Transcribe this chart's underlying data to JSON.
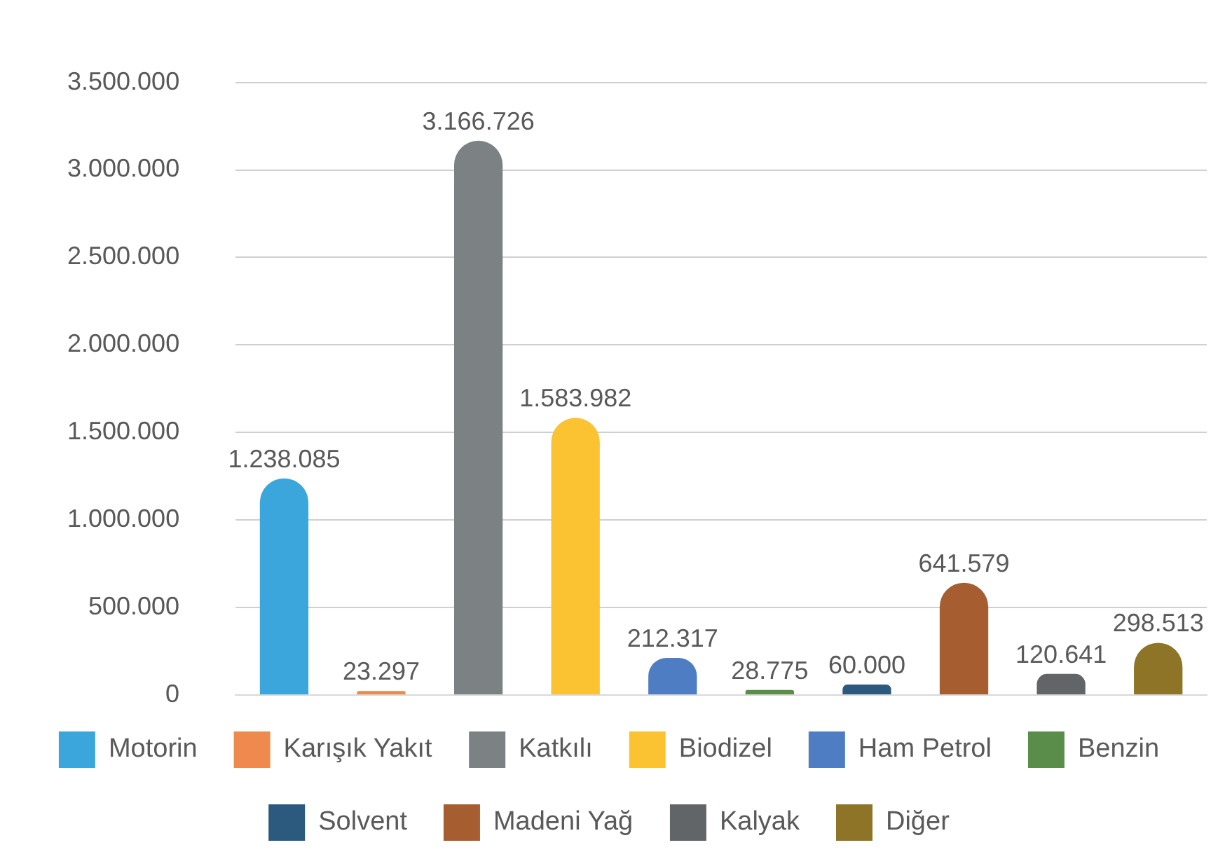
{
  "chart_data": {
    "type": "bar",
    "categories": [
      null,
      null,
      null,
      null,
      null,
      null,
      null,
      null,
      null,
      null
    ],
    "series": [
      {
        "name": "Motorin",
        "color": "#3aa6dc",
        "values": [
          1238085,
          null,
          null,
          null,
          null,
          null,
          null,
          null,
          null,
          null
        ],
        "value_labels": [
          "1.238.085",
          null,
          null,
          null,
          null,
          null,
          null,
          null,
          null,
          null
        ]
      },
      {
        "name": "Karışık Yakıt",
        "color": "#ef8a4e",
        "values": [
          null,
          23297,
          null,
          null,
          null,
          null,
          null,
          null,
          null,
          null
        ],
        "value_labels": [
          null,
          "23.297",
          null,
          null,
          null,
          null,
          null,
          null,
          null,
          null
        ]
      },
      {
        "name": "Katkılı",
        "color": "#7c8183",
        "values": [
          null,
          null,
          3166726,
          null,
          null,
          null,
          null,
          null,
          null,
          null
        ],
        "value_labels": [
          null,
          null,
          "3.166.726",
          null,
          null,
          null,
          null,
          null,
          null,
          null
        ]
      },
      {
        "name": "Biodizel",
        "color": "#fbc232",
        "values": [
          null,
          null,
          null,
          1583982,
          null,
          null,
          null,
          null,
          null,
          null
        ],
        "value_labels": [
          null,
          null,
          null,
          "1.583.982",
          null,
          null,
          null,
          null,
          null,
          null
        ]
      },
      {
        "name": "Ham Petrol",
        "color": "#4f7dc4",
        "values": [
          null,
          null,
          null,
          null,
          212317,
          null,
          null,
          null,
          null,
          null
        ],
        "value_labels": [
          null,
          null,
          null,
          null,
          "212.317",
          null,
          null,
          null,
          null,
          null
        ]
      },
      {
        "name": "Benzin",
        "color": "#5a8c4a",
        "values": [
          null,
          null,
          null,
          null,
          null,
          28775,
          null,
          null,
          null,
          null
        ],
        "value_labels": [
          null,
          null,
          null,
          null,
          null,
          "28.775",
          null,
          null,
          null,
          null
        ]
      },
      {
        "name": "Solvent",
        "color": "#2c5a7e",
        "values": [
          null,
          null,
          null,
          null,
          null,
          null,
          60000,
          null,
          null,
          null
        ],
        "value_labels": [
          null,
          null,
          null,
          null,
          null,
          null,
          "60.000",
          null,
          null,
          null
        ]
      },
      {
        "name": "Madeni Yağ",
        "color": "#a65d30",
        "values": [
          null,
          null,
          null,
          null,
          null,
          null,
          null,
          641579,
          null,
          null
        ],
        "value_labels": [
          null,
          null,
          null,
          null,
          null,
          null,
          null,
          "641.579",
          null,
          null
        ]
      },
      {
        "name": "Kalyak",
        "color": "#616568",
        "values": [
          null,
          null,
          null,
          null,
          null,
          null,
          null,
          null,
          120641,
          null
        ],
        "value_labels": [
          null,
          null,
          null,
          null,
          null,
          null,
          null,
          null,
          "120.641",
          null
        ]
      },
      {
        "name": "Diğer",
        "color": "#8e7426",
        "values": [
          null,
          null,
          null,
          null,
          null,
          null,
          null,
          null,
          null,
          298513
        ],
        "value_labels": [
          null,
          null,
          null,
          null,
          null,
          null,
          null,
          null,
          null,
          "298.513"
        ]
      }
    ],
    "ylim": [
      0,
      3500000
    ],
    "yticks": [
      0,
      {
        "value": 500000,
        "label": "500.000"
      },
      {
        "value": 1000000,
        "label": "1.000.000"
      },
      {
        "value": 1500000,
        "label": "1.500.000"
      },
      {
        "value": 2000000,
        "label": "2.000.000"
      },
      {
        "value": 2500000,
        "label": "2.500.000"
      },
      {
        "value": 3000000,
        "label": "3.000.000"
      },
      {
        "value": 3500000,
        "label": "3.500.000"
      }
    ],
    "grid": "y",
    "legend": "bottom",
    "tick_labels": "y"
  }
}
